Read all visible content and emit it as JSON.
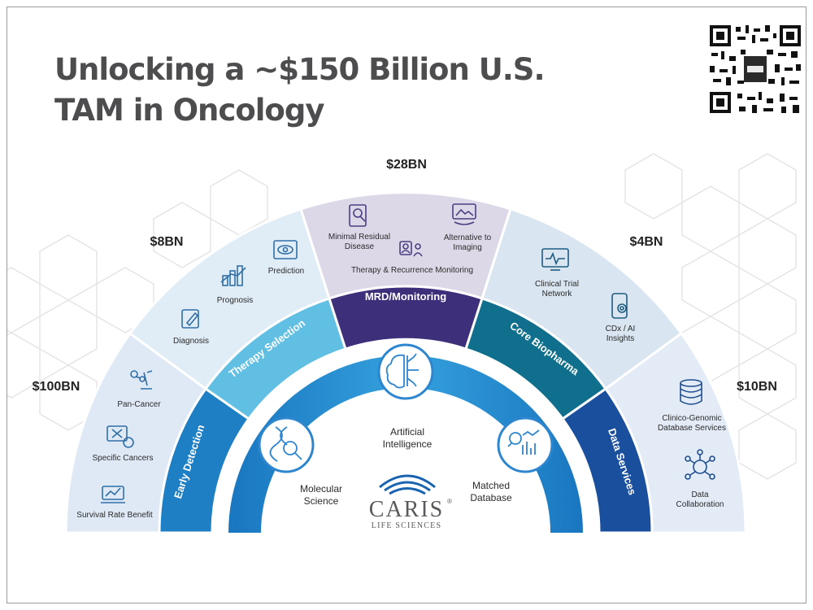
{
  "title": {
    "line1": "Unlocking a ~$150 Billion U.S.",
    "line2": "TAM in Oncology"
  },
  "qr_icon": "qr-code",
  "amounts": {
    "early_detection": "$100BN",
    "therapy_selection": "$8BN",
    "mrd": "$28BN",
    "biopharma": "$4BN",
    "data_services": "$10BN"
  },
  "bands": {
    "early_detection": "Early Detection",
    "therapy_selection": "Therapy Selection",
    "mrd": "MRD/Monitoring",
    "biopharma": "Core Biopharma",
    "data_services": "Data Services"
  },
  "outer_items": {
    "pan_cancer": "Pan-Cancer",
    "specific_cancers": "Specific Cancers",
    "survival": "Survival Rate Benefit",
    "diagnosis": "Diagnosis",
    "prognosis": "Prognosis",
    "prediction": "Prediction",
    "mrd_line1": "Minimal Residual",
    "mrd_line2": "Disease",
    "alt_line1": "Alternative to",
    "alt_line2": "Imaging",
    "therapy_recurrence": "Therapy & Recurrence Monitoring",
    "ctn_line1": "Clinical Trial",
    "ctn_line2": "Network",
    "cdx_line1": "CDx / AI",
    "cdx_line2": "Insights",
    "cgd_line1": "Clinico-Genomic",
    "cgd_line2": "Database Services",
    "dc_line1": "Data",
    "dc_line2": "Collaboration"
  },
  "core": {
    "ai_line1": "Artificial",
    "ai_line2": "Intelligence",
    "mol_line1": "Molecular",
    "mol_line2": "Science",
    "md_line1": "Matched",
    "md_line2": "Database"
  },
  "logo": {
    "name": "CARIS",
    "mark": "®",
    "sub": "LIFE SCIENCES"
  },
  "colors": {
    "title": "#4d4d4f",
    "early_detection": "#1e7fc4",
    "therapy_selection": "#62bfe4",
    "mrd": "#3d2f7a",
    "biopharma": "#0f6f8c",
    "data_services": "#1a4f9e",
    "inner_arc": "#2e86cf"
  }
}
